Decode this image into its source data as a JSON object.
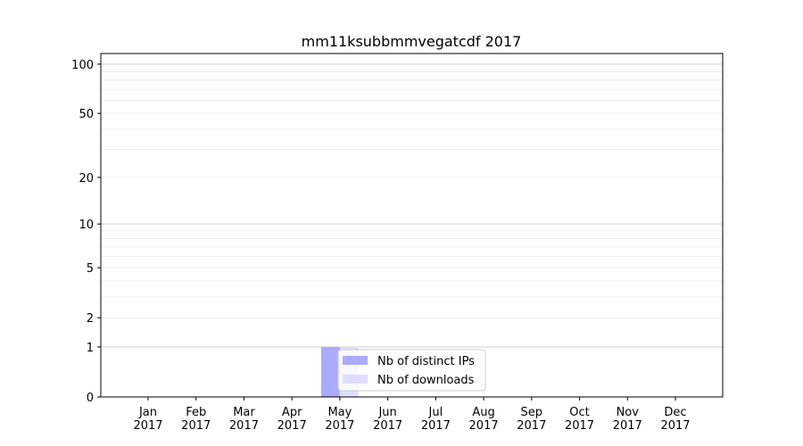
{
  "chart_data": {
    "type": "bar",
    "title": "mm11ksubbmmvegatcdf 2017",
    "xlabel": "",
    "ylabel": "",
    "categories": [
      "Jan\n2017",
      "Feb\n2017",
      "Mar\n2017",
      "Apr\n2017",
      "May\n2017",
      "Jun\n2017",
      "Jul\n2017",
      "Aug\n2017",
      "Sep\n2017",
      "Oct\n2017",
      "Nov\n2017",
      "Dec\n2017"
    ],
    "y_scale": "log(1+y)",
    "ylim": [
      0,
      116
    ],
    "yticks": [
      0,
      1,
      2,
      5,
      10,
      20,
      50,
      100
    ],
    "grid": true,
    "legend_position": "bottom-center",
    "series": [
      {
        "name": "Nb of distinct IPs",
        "color": "#aaaaff",
        "values": [
          0,
          0,
          0,
          0,
          1,
          0,
          0,
          0,
          0,
          0,
          0,
          0
        ]
      },
      {
        "name": "Nb of downloads",
        "color": "#ddddff",
        "values": [
          0,
          0,
          0,
          0,
          1,
          0,
          0,
          0,
          0,
          0,
          0,
          0
        ]
      }
    ]
  }
}
